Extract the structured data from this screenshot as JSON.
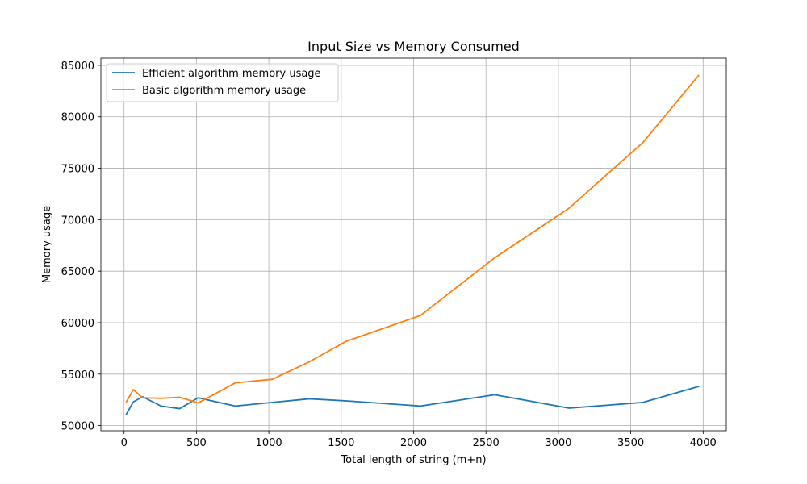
{
  "chart_data": {
    "type": "line",
    "title": "Input Size vs Memory Consumed",
    "xlabel": "Total length of string (m+n)",
    "ylabel": "Memory usage",
    "xlim": [
      -160,
      4160
    ],
    "ylim": [
      49500,
      85700
    ],
    "xticks": [
      0,
      500,
      1000,
      1500,
      2000,
      2500,
      3000,
      3500,
      4000
    ],
    "yticks": [
      50000,
      55000,
      60000,
      65000,
      70000,
      75000,
      80000,
      85000
    ],
    "grid": true,
    "legend_position": "top-left",
    "series": [
      {
        "name": "Efficient algorithm memory usage",
        "color": "#1f77b4",
        "x": [
          16,
          64,
          128,
          256,
          384,
          512,
          768,
          1024,
          1280,
          1536,
          2048,
          2560,
          3072,
          3584,
          3968
        ],
        "y": [
          51100,
          52300,
          52800,
          51900,
          51650,
          52700,
          51900,
          52250,
          52600,
          52400,
          51900,
          53000,
          51700,
          52250,
          53800
        ]
      },
      {
        "name": "Basic algorithm memory usage",
        "color": "#ff7f0e",
        "x": [
          16,
          64,
          128,
          256,
          384,
          512,
          768,
          1024,
          1280,
          1536,
          2048,
          2560,
          3072,
          3584,
          3968
        ],
        "y": [
          52300,
          53500,
          52700,
          52650,
          52750,
          52200,
          54150,
          54500,
          56200,
          58200,
          60700,
          66300,
          71100,
          77500,
          84000
        ]
      }
    ]
  }
}
